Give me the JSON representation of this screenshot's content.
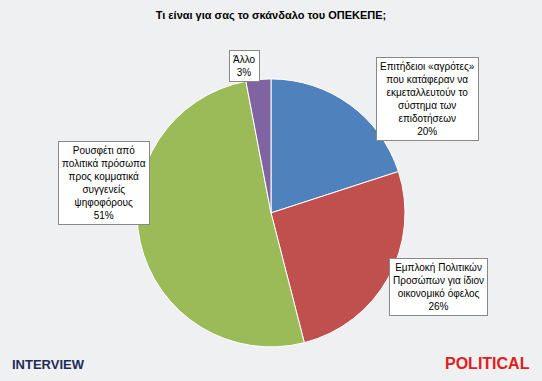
{
  "chart_data": {
    "type": "pie",
    "title": "Τι είναι για σας το σκάνδαλο του ΟΠΕΚΕΠΕ;",
    "categories": [
      "Επιτήδειοι «αγρότες» που κατάφεραν να εκμεταλλευτούν το σύστημα των επιδοτήσεων",
      "Εμπλοκή Πολιτικών Προσώπων για ίδιον οικονομικό όφελος",
      "Ρουσφέτι από πολιτικά πρόσωπα προς κομματικά συγγενείς ψηφοφόρους",
      "Άλλο"
    ],
    "values": [
      20,
      26,
      51,
      3
    ],
    "value_labels": [
      "20%",
      "26%",
      "51%",
      "3%"
    ],
    "colors": [
      "#4f81bd",
      "#c0504d",
      "#9bbb59",
      "#8064a2"
    ],
    "data_labels": true,
    "annotations": [
      "INTERVIEW",
      "POLITICAL"
    ]
  }
}
